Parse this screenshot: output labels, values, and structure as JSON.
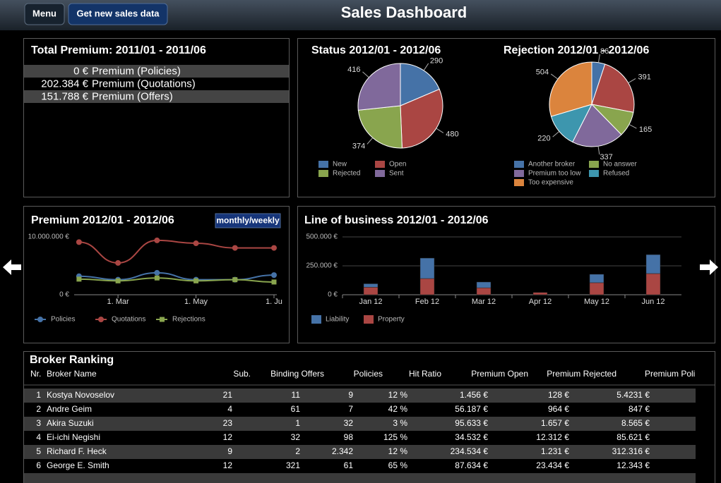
{
  "header": {
    "menu": "Menu",
    "refresh": "Get new sales data",
    "title": "Sales Dashboard"
  },
  "total_premium": {
    "title": "Total Premium: 2011/01 - 2011/06",
    "rows": [
      {
        "amount": "0 €",
        "label": "Premium (Policies)"
      },
      {
        "amount": "202.384 €",
        "label": "Premium (Quotations)"
      },
      {
        "amount": "151.788 €",
        "label": "Premium (Offers)"
      }
    ]
  },
  "chart_data": [
    {
      "type": "pie",
      "title": "Status 2012/01 - 2012/06",
      "categories": [
        "New",
        "Open",
        "Rejected",
        "Sent"
      ],
      "values": [
        290,
        480,
        374,
        416
      ],
      "colors": [
        "#4572a7",
        "#aa4643",
        "#89a54e",
        "#80699b"
      ]
    },
    {
      "type": "pie",
      "title": "Rejection 2012/01 - 2012/06",
      "categories": [
        "Another broker",
        null,
        "No answer",
        "Premium too low",
        "Refused",
        "Too expensive"
      ],
      "values": [
        86,
        391,
        165,
        337,
        220,
        504
      ],
      "colors": [
        "#4572a7",
        "#aa4643",
        "#89a54e",
        "#80699b",
        "#3d96ae",
        "#db843d"
      ]
    },
    {
      "type": "line",
      "title": "Premium 2012/01 - 2012/06",
      "toggle": "monthly/weekly",
      "x": [
        0,
        1,
        2,
        3,
        4,
        5
      ],
      "xlim": [
        -0.125,
        5
      ],
      "xticks": [
        {
          "value": 1,
          "label": "1. Mar"
        },
        {
          "value": 3,
          "label": "1. May"
        },
        {
          "value": 5,
          "label": "1. Ju"
        }
      ],
      "ylim": [
        0,
        10000000
      ],
      "yticks": [
        {
          "value": 0,
          "label": "0 €"
        },
        {
          "value": 10000000,
          "label": "10.000.000 €"
        }
      ],
      "series": [
        {
          "name": "Policies",
          "color": "#4572a7",
          "marker": "circle",
          "values": [
            3200000,
            2600000,
            3800000,
            2600000,
            2600000,
            3400000
          ]
        },
        {
          "name": "Quotations",
          "color": "#aa4643",
          "marker": "circle",
          "values": [
            9100000,
            5500000,
            9400000,
            8900000,
            8100000,
            8100000
          ]
        },
        {
          "name": "Rejections",
          "color": "#89a54e",
          "marker": "square",
          "values": [
            2700000,
            2400000,
            2900000,
            2400000,
            2600000,
            2200000
          ]
        }
      ]
    },
    {
      "type": "bar",
      "stacked": true,
      "grid": true,
      "title": "Line of business 2012/01 - 2012/06",
      "categories": [
        "Jan 12",
        "Feb 12",
        "Mar 12",
        "Apr 12",
        "May 12",
        "Jun 12"
      ],
      "ylim": [
        0,
        500000
      ],
      "yticks": [
        {
          "value": 0,
          "label": "0 €"
        },
        {
          "value": 250000,
          "label": "250.000 €"
        },
        {
          "value": 500000,
          "label": "500.000 €"
        }
      ],
      "series": [
        {
          "name": "Liability",
          "color": "#4572a7",
          "values": [
            30000,
            177000,
            50000,
            0,
            73000,
            164000
          ]
        },
        {
          "name": "Property",
          "color": "#aa4643",
          "values": [
            65000,
            140000,
            60000,
            20000,
            104000,
            183000
          ]
        }
      ]
    }
  ],
  "broker_ranking": {
    "title": "Broker Ranking",
    "columns": [
      "Nr.",
      "Broker Name",
      "Sub.",
      "Binding Offers",
      "Policies",
      "Hit Ratio",
      "Premium Open",
      "Premium Rejected",
      "Premium Poli"
    ],
    "rows": [
      [
        "1",
        "Kostya Novoselov",
        "21",
        "11",
        "9",
        "12 %",
        "1.456 €",
        "128 €",
        "5.4231 €"
      ],
      [
        "2",
        "Andre Geim",
        "4",
        "61",
        "7",
        "42 %",
        "56.187 €",
        "964 €",
        "847 €"
      ],
      [
        "3",
        "Akira Suzuki",
        "23",
        "1",
        "32",
        "3 %",
        "95.633 €",
        "1.657 €",
        "8.565 €"
      ],
      [
        "4",
        "Ei-ichi Negishi",
        "12",
        "32",
        "98",
        "125 %",
        "34.532 €",
        "12.312 €",
        "85.621 €"
      ],
      [
        "5",
        "Richard F. Heck",
        "9",
        "2",
        "2.342",
        "12 %",
        "234.534 €",
        "1.231 €",
        "312.316 €"
      ],
      [
        "6",
        "George E. Smith",
        "12",
        "321",
        "61",
        "65 %",
        "87.634 €",
        "23.434 €",
        "12.343 €"
      ]
    ]
  }
}
